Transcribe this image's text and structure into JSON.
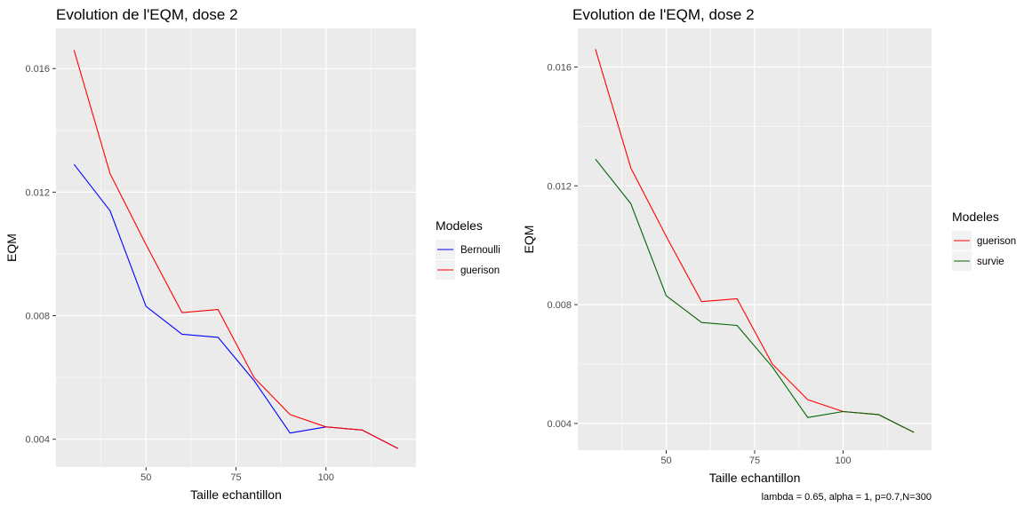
{
  "chart_data": [
    {
      "type": "line",
      "title": "Evolution de l'EQM, dose 2",
      "xlabel": "Taille echantillon",
      "ylabel": "EQM",
      "xlim": [
        25,
        125
      ],
      "ylim": [
        0.0031,
        0.0173
      ],
      "x_ticks": [
        50,
        75,
        100
      ],
      "y_ticks": [
        0.004,
        0.008,
        0.012,
        0.016
      ],
      "x_tick_labels": [
        "50",
        "75",
        "100"
      ],
      "y_tick_labels": [
        "0.004",
        "0.008",
        "0.012",
        "0.016"
      ],
      "grid": true,
      "legend": {
        "title": "Modeles",
        "placement": "right",
        "entries": [
          {
            "name": "Bernoulli",
            "color": "#0000ff"
          },
          {
            "name": "guerison",
            "color": "#ff0000"
          }
        ]
      },
      "series": [
        {
          "name": "Bernoulli",
          "color": "#0000ff",
          "x": [
            30,
            40,
            50,
            60,
            70,
            80,
            90,
            100,
            110,
            120
          ],
          "values": [
            0.0129,
            0.0114,
            0.0083,
            0.0074,
            0.0073,
            0.0059,
            0.0042,
            0.0044,
            0.0043,
            0.0037
          ]
        },
        {
          "name": "guerison",
          "color": "#ff0000",
          "x": [
            30,
            40,
            50,
            60,
            70,
            80,
            90,
            100,
            110,
            120
          ],
          "values": [
            0.0166,
            0.0126,
            0.0103,
            0.0081,
            0.0082,
            0.006,
            0.0048,
            0.0044,
            0.0043,
            0.0037
          ]
        }
      ]
    },
    {
      "type": "line",
      "title": "Evolution de l'EQM, dose 2",
      "xlabel": "Taille echantillon",
      "ylabel": "EQM",
      "xlim": [
        25,
        125
      ],
      "ylim": [
        0.0031,
        0.0173
      ],
      "x_ticks": [
        50,
        75,
        100
      ],
      "y_ticks": [
        0.004,
        0.008,
        0.012,
        0.016
      ],
      "x_tick_labels": [
        "50",
        "75",
        "100"
      ],
      "y_tick_labels": [
        "0.004",
        "0.008",
        "0.012",
        "0.016"
      ],
      "grid": true,
      "caption": "lambda = 0.65, alpha = 1, p=0.7,N=300",
      "legend": {
        "title": "Modeles",
        "placement": "right",
        "entries": [
          {
            "name": "guerison",
            "color": "#ff0000"
          },
          {
            "name": "survie",
            "color": "#006400"
          }
        ]
      },
      "series": [
        {
          "name": "guerison",
          "color": "#ff0000",
          "x": [
            30,
            40,
            50,
            60,
            70,
            80,
            90,
            100,
            110,
            120
          ],
          "values": [
            0.0166,
            0.0126,
            0.0103,
            0.0081,
            0.0082,
            0.006,
            0.0048,
            0.0044,
            0.0043,
            0.0037
          ]
        },
        {
          "name": "survie",
          "color": "#006400",
          "x": [
            30,
            40,
            50,
            60,
            70,
            80,
            90,
            100,
            110,
            120
          ],
          "values": [
            0.0129,
            0.0114,
            0.0083,
            0.0074,
            0.0073,
            0.0059,
            0.0042,
            0.0044,
            0.0043,
            0.0037
          ]
        }
      ]
    }
  ]
}
